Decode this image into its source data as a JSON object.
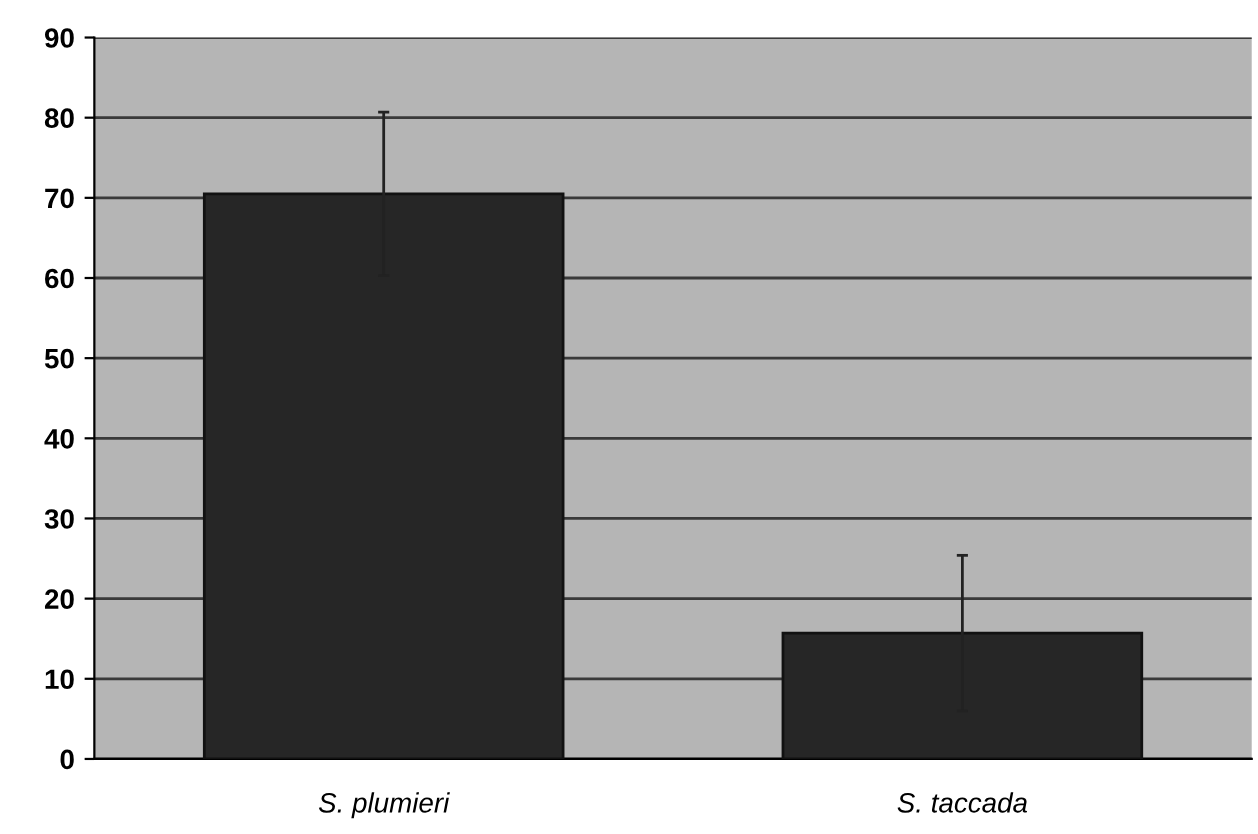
{
  "chart_data": {
    "type": "bar",
    "categories": [
      "S. plumieri",
      "S. taccada"
    ],
    "values": [
      70.5,
      15.7
    ],
    "errors": [
      10.2,
      9.7
    ],
    "color": "#262626",
    "ylim": [
      0,
      90
    ],
    "yticks": [
      0,
      10,
      20,
      30,
      40,
      50,
      60,
      70,
      80,
      90
    ],
    "grid": "y"
  }
}
